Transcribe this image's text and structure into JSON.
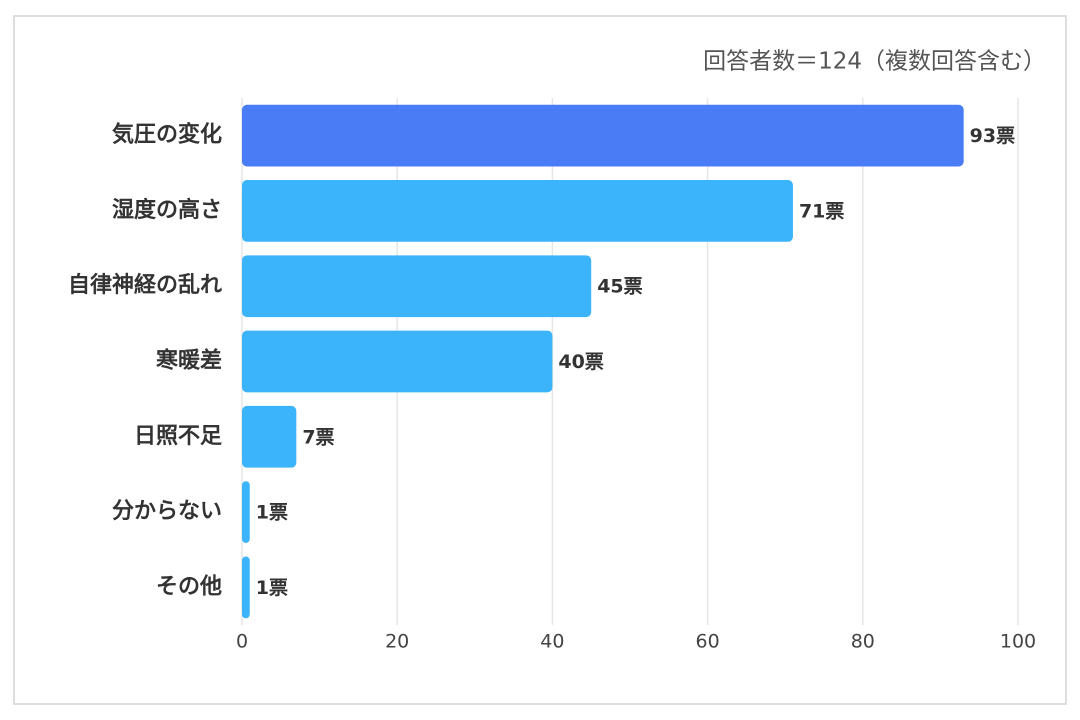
{
  "chart_data": {
    "type": "barh",
    "subtitle": "回答者数＝124（複数回答含む）",
    "categories": [
      "気圧の変化",
      "湿度の高さ",
      "自律神経の乱れ",
      "寒暖差",
      "日照不足",
      "分からない",
      "その他"
    ],
    "values": [
      93,
      71,
      45,
      40,
      7,
      1,
      1
    ],
    "value_labels": [
      "93票",
      "71票",
      "45票",
      "40票",
      "7票",
      "1票",
      "1票"
    ],
    "colors": [
      "#4a7df5",
      "#3cb4fb",
      "#3cb4fb",
      "#3cb4fb",
      "#3cb4fb",
      "#3cb4fb",
      "#3cb4fb"
    ],
    "xlim": [
      0,
      100
    ],
    "xticks": [
      0,
      20,
      40,
      60,
      80,
      100
    ],
    "grid": true
  }
}
